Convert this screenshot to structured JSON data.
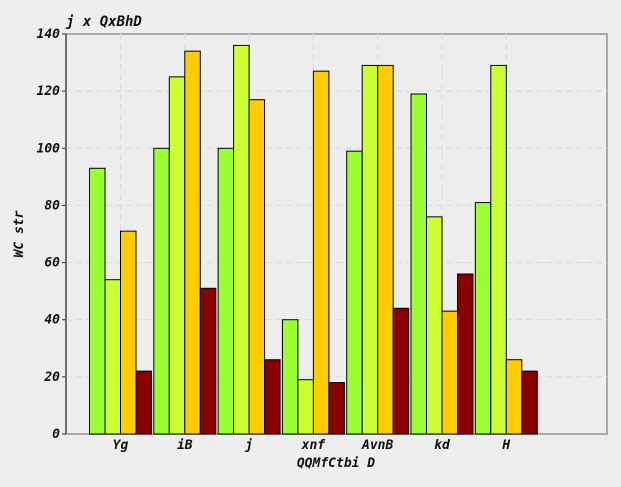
{
  "chart_data": {
    "type": "bar",
    "title": "j x QxBhD",
    "xlabel": "QQMfCtbi D",
    "ylabel": "WC str",
    "categories": [
      "Yg",
      "iB",
      "j",
      "xnf",
      "AvnB",
      "kd",
      "H"
    ],
    "series": [
      {
        "color": "#99ff33",
        "values": [
          93,
          100,
          100,
          40,
          99,
          119,
          81
        ]
      },
      {
        "color": "#ccff33",
        "values": [
          54,
          125,
          136,
          19,
          129,
          76,
          129
        ]
      },
      {
        "color": "#ffcc00",
        "values": [
          71,
          134,
          117,
          127,
          129,
          43,
          26
        ]
      },
      {
        "color": "#880000",
        "values": [
          22,
          51,
          26,
          18,
          44,
          56,
          22
        ]
      }
    ],
    "ylim": [
      0,
      140
    ],
    "yticks": [
      0,
      20,
      40,
      60,
      80,
      100,
      120,
      140
    ],
    "grid": true,
    "legend": "none",
    "colors": {
      "background": "#eeeeee",
      "plot_border": "#aaaaaa",
      "grid": "#dddddd",
      "bar_edge": "#000000"
    }
  }
}
